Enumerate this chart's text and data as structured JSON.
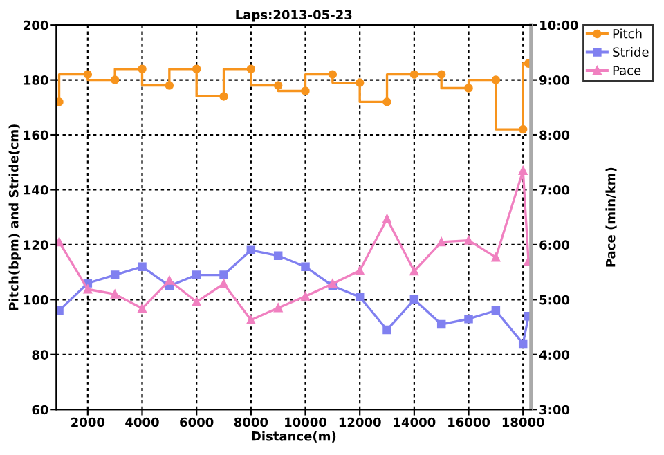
{
  "chart_data": {
    "type": "line",
    "title": "Laps:2013-05-23",
    "xlabel": "Distance(m)",
    "ylabel": "Pitch(bpm) and Stride(cm)",
    "y2label": "Pace (min/km)",
    "x": [
      950,
      2000,
      3000,
      4000,
      5000,
      6000,
      7000,
      8000,
      9000,
      10000,
      11000,
      12000,
      13000,
      14000,
      15000,
      16000,
      17000,
      18000,
      18200
    ],
    "series": [
      {
        "name": "Pitch",
        "type": "step",
        "color": "#f7941d",
        "marker": "circle",
        "values": [
          172,
          182,
          180,
          184,
          178,
          184,
          174,
          184,
          178,
          176,
          182,
          179,
          172,
          182,
          182,
          177,
          180,
          162,
          186
        ]
      },
      {
        "name": "Stride",
        "color": "#8080f0",
        "marker": "square",
        "values": [
          96,
          106,
          109,
          112,
          105,
          109,
          109,
          118,
          116,
          112,
          105,
          101,
          89,
          100,
          91,
          93,
          96,
          84,
          94
        ]
      },
      {
        "name": "Pace",
        "color": "#f080c0",
        "marker": "triangle",
        "axis": "y2",
        "values": [
          6.05,
          5.19,
          5.1,
          4.84,
          5.35,
          4.96,
          5.29,
          4.63,
          4.85,
          5.06,
          5.29,
          5.53,
          6.47,
          5.52,
          6.05,
          6.08,
          5.77,
          7.35,
          5.7
        ]
      }
    ],
    "xlim": [
      850,
      18300
    ],
    "xticks": [
      2000,
      4000,
      6000,
      8000,
      10000,
      12000,
      14000,
      16000,
      18000
    ],
    "ylim": [
      60,
      200
    ],
    "yticks": [
      60,
      80,
      100,
      120,
      140,
      160,
      180,
      200
    ],
    "y2lim": [
      3,
      10
    ],
    "y2ticks": [
      {
        "value": 3,
        "label": "3:00"
      },
      {
        "value": 4,
        "label": "4:00"
      },
      {
        "value": 5,
        "label": "5:00"
      },
      {
        "value": 6,
        "label": "6:00"
      },
      {
        "value": 7,
        "label": "7:00"
      },
      {
        "value": 8,
        "label": "8:00"
      },
      {
        "value": 9,
        "label": "9:00"
      },
      {
        "value": 10,
        "label": "10:00"
      }
    ],
    "grid": true,
    "legend": "top right"
  }
}
